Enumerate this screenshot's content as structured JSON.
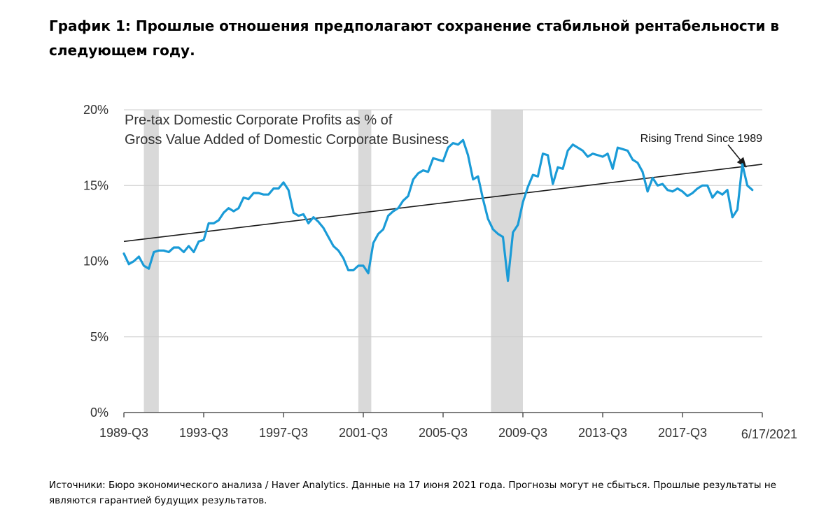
{
  "page": {
    "heading": "График 1: Прошлые отношения предполагают сохранение стабильной рентабельности в следующем году.",
    "footer": "Источники: Бюро экономического анализа / Haver Analytics. Данные на 17 июня 2021 года. Прогнозы могут не сбыться. Прошлые результаты не являются гарантией будущих результатов."
  },
  "chart_data": {
    "type": "line",
    "title_lines": [
      "Pre-tax Domestic Corporate Profits as % of",
      "Gross Value Added of Domestic Corporate Business"
    ],
    "xlabel": "",
    "ylabel": "",
    "ylim": [
      0,
      20
    ],
    "xlim": [
      1989.5,
      2021.5
    ],
    "y_ticks": [
      0,
      5,
      10,
      15,
      20
    ],
    "y_tick_labels": [
      "0%",
      "5%",
      "10%",
      "15%",
      "20%"
    ],
    "x_ticks": [
      1989.5,
      1993.5,
      1997.5,
      2001.5,
      2005.5,
      2009.5,
      2013.5,
      2017.5
    ],
    "x_tick_labels": [
      "1989-Q3",
      "1993-Q3",
      "1997-Q3",
      "2001-Q3",
      "2005-Q3",
      "2009-Q3",
      "2013-Q3",
      "2017-Q3"
    ],
    "date_label": "6/17/2021",
    "grid": true,
    "colors": {
      "series": "#1a9bd7",
      "trend": "#1a1a1a",
      "recession": "#d9d9d9",
      "grid": "#cccccc",
      "axis": "#555555"
    },
    "recessions": [
      [
        1990.5,
        1991.25
      ],
      [
        2001.25,
        2001.9
      ],
      [
        2007.9,
        2009.5
      ]
    ],
    "series": [
      {
        "name": "",
        "points": [
          [
            1989.5,
            10.5
          ],
          [
            1989.75,
            9.8
          ],
          [
            1990.0,
            10.0
          ],
          [
            1990.25,
            10.3
          ],
          [
            1990.5,
            9.7
          ],
          [
            1990.75,
            9.5
          ],
          [
            1991.0,
            10.6
          ],
          [
            1991.25,
            10.7
          ],
          [
            1991.5,
            10.7
          ],
          [
            1991.75,
            10.6
          ],
          [
            1992.0,
            10.9
          ],
          [
            1992.25,
            10.9
          ],
          [
            1992.5,
            10.6
          ],
          [
            1992.75,
            11.0
          ],
          [
            1993.0,
            10.6
          ],
          [
            1993.25,
            11.3
          ],
          [
            1993.5,
            11.4
          ],
          [
            1993.75,
            12.5
          ],
          [
            1994.0,
            12.5
          ],
          [
            1994.25,
            12.7
          ],
          [
            1994.5,
            13.2
          ],
          [
            1994.75,
            13.5
          ],
          [
            1995.0,
            13.3
          ],
          [
            1995.25,
            13.5
          ],
          [
            1995.5,
            14.2
          ],
          [
            1995.75,
            14.1
          ],
          [
            1996.0,
            14.5
          ],
          [
            1996.25,
            14.5
          ],
          [
            1996.5,
            14.4
          ],
          [
            1996.75,
            14.4
          ],
          [
            1997.0,
            14.8
          ],
          [
            1997.25,
            14.8
          ],
          [
            1997.5,
            15.2
          ],
          [
            1997.75,
            14.7
          ],
          [
            1998.0,
            13.2
          ],
          [
            1998.25,
            13.0
          ],
          [
            1998.5,
            13.1
          ],
          [
            1998.75,
            12.5
          ],
          [
            1999.0,
            12.9
          ],
          [
            1999.25,
            12.6
          ],
          [
            1999.5,
            12.2
          ],
          [
            1999.75,
            11.6
          ],
          [
            2000.0,
            11.0
          ],
          [
            2000.25,
            10.7
          ],
          [
            2000.5,
            10.2
          ],
          [
            2000.75,
            9.4
          ],
          [
            2001.0,
            9.4
          ],
          [
            2001.25,
            9.7
          ],
          [
            2001.5,
            9.7
          ],
          [
            2001.75,
            9.2
          ],
          [
            2002.0,
            11.2
          ],
          [
            2002.25,
            11.8
          ],
          [
            2002.5,
            12.1
          ],
          [
            2002.75,
            13.0
          ],
          [
            2003.0,
            13.3
          ],
          [
            2003.25,
            13.5
          ],
          [
            2003.5,
            14.0
          ],
          [
            2003.75,
            14.3
          ],
          [
            2004.0,
            15.4
          ],
          [
            2004.25,
            15.8
          ],
          [
            2004.5,
            16.0
          ],
          [
            2004.75,
            15.9
          ],
          [
            2005.0,
            16.8
          ],
          [
            2005.25,
            16.7
          ],
          [
            2005.5,
            16.6
          ],
          [
            2005.75,
            17.5
          ],
          [
            2006.0,
            17.8
          ],
          [
            2006.25,
            17.7
          ],
          [
            2006.5,
            18.0
          ],
          [
            2006.75,
            17.0
          ],
          [
            2007.0,
            15.4
          ],
          [
            2007.25,
            15.6
          ],
          [
            2007.5,
            14.1
          ],
          [
            2007.75,
            12.8
          ],
          [
            2008.0,
            12.1
          ],
          [
            2008.25,
            11.8
          ],
          [
            2008.5,
            11.6
          ],
          [
            2008.75,
            8.7
          ],
          [
            2009.0,
            11.9
          ],
          [
            2009.25,
            12.4
          ],
          [
            2009.5,
            13.9
          ],
          [
            2009.75,
            14.9
          ],
          [
            2010.0,
            15.7
          ],
          [
            2010.25,
            15.6
          ],
          [
            2010.5,
            17.1
          ],
          [
            2010.75,
            17.0
          ],
          [
            2011.0,
            15.1
          ],
          [
            2011.25,
            16.2
          ],
          [
            2011.5,
            16.1
          ],
          [
            2011.75,
            17.3
          ],
          [
            2012.0,
            17.7
          ],
          [
            2012.25,
            17.5
          ],
          [
            2012.5,
            17.3
          ],
          [
            2012.75,
            16.9
          ],
          [
            2013.0,
            17.1
          ],
          [
            2013.25,
            17.0
          ],
          [
            2013.5,
            16.9
          ],
          [
            2013.75,
            17.1
          ],
          [
            2014.0,
            16.1
          ],
          [
            2014.25,
            17.5
          ],
          [
            2014.5,
            17.4
          ],
          [
            2014.75,
            17.3
          ],
          [
            2015.0,
            16.7
          ],
          [
            2015.25,
            16.5
          ],
          [
            2015.5,
            15.9
          ],
          [
            2015.75,
            14.6
          ],
          [
            2016.0,
            15.5
          ],
          [
            2016.25,
            15.0
          ],
          [
            2016.5,
            15.1
          ],
          [
            2016.75,
            14.7
          ],
          [
            2017.0,
            14.6
          ],
          [
            2017.25,
            14.8
          ],
          [
            2017.5,
            14.6
          ],
          [
            2017.75,
            14.3
          ],
          [
            2018.0,
            14.5
          ],
          [
            2018.25,
            14.8
          ],
          [
            2018.5,
            15.0
          ],
          [
            2018.75,
            15.0
          ],
          [
            2019.0,
            14.2
          ],
          [
            2019.25,
            14.6
          ],
          [
            2019.5,
            14.4
          ],
          [
            2019.75,
            14.7
          ],
          [
            2020.0,
            12.9
          ],
          [
            2020.25,
            13.4
          ],
          [
            2020.5,
            16.4
          ],
          [
            2020.75,
            15.0
          ],
          [
            2021.0,
            14.7
          ]
        ]
      }
    ],
    "trend": {
      "label": "Rising Trend Since 1989",
      "start": [
        1989.5,
        11.3
      ],
      "end": [
        2021.5,
        16.4
      ],
      "arrow_to": [
        2020.7,
        16.2
      ]
    }
  }
}
